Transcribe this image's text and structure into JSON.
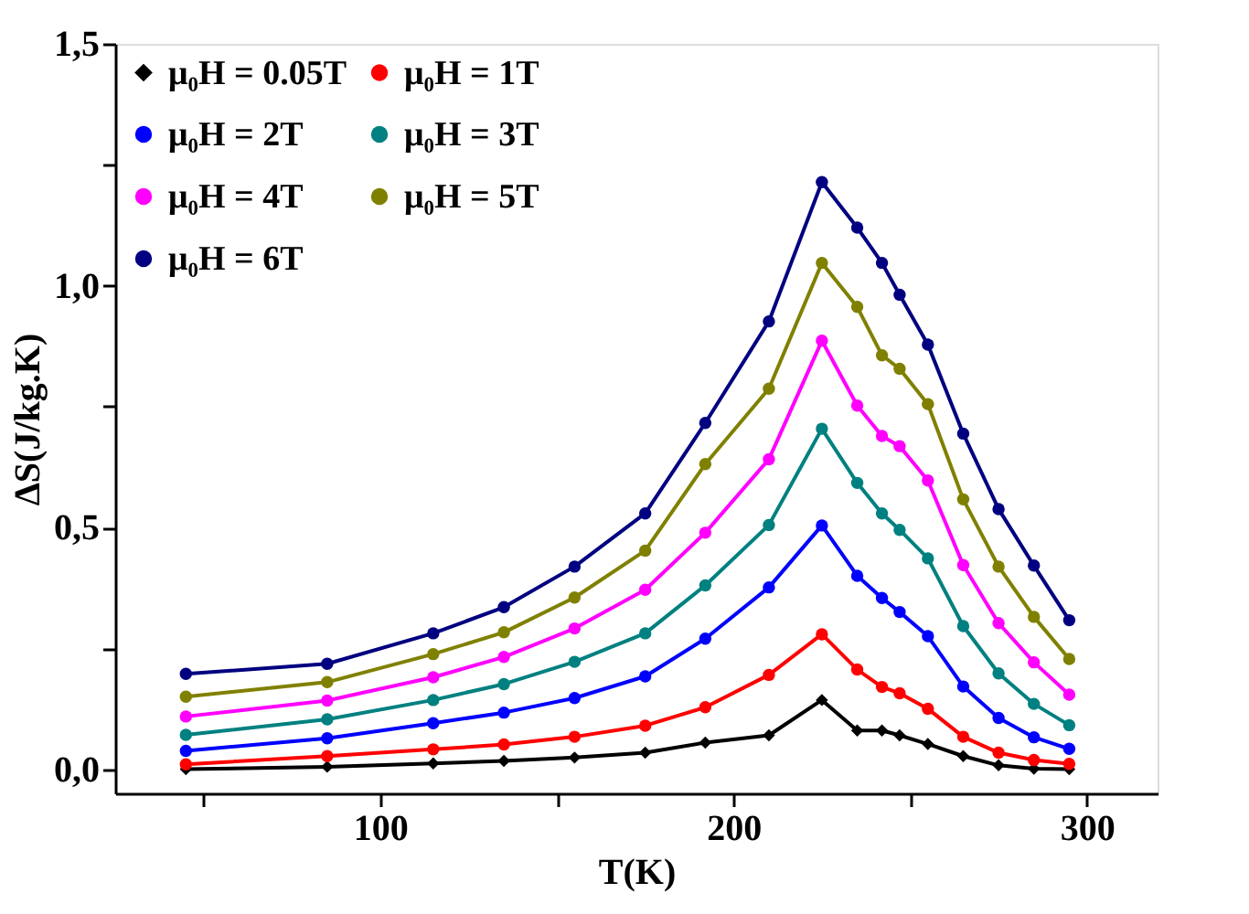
{
  "chart_data": {
    "type": "line",
    "xlabel": "T(K)",
    "ylabel": "ΔS(J/kg.K)",
    "x": [
      45,
      85,
      115,
      135,
      155,
      175,
      192,
      210,
      225,
      235,
      242,
      247,
      255,
      265,
      275,
      285,
      295
    ],
    "xlim": [
      25,
      320
    ],
    "xticks": [
      {
        "value": 50,
        "label": null
      },
      100,
      {
        "value": 150,
        "label": null
      },
      200,
      {
        "value": 250,
        "label": null
      },
      300
    ],
    "ylim": [
      -0.05,
      1.5
    ],
    "yticks": [
      {
        "value": 0,
        "label": "0,0"
      },
      {
        "value": 0.25,
        "label": null
      },
      {
        "value": 0.5,
        "label": "0,5"
      },
      {
        "value": 0.75,
        "label": null
      },
      {
        "value": 1.0,
        "label": "1,0"
      },
      {
        "value": 1.25,
        "label": null
      },
      {
        "value": 1.5,
        "label": "1,5"
      }
    ],
    "grid": false,
    "legend": "top left",
    "line_style": "solid",
    "series": [
      {
        "name": "μ₀H = 0.05T",
        "color": "#000000",
        "marker": "diamond",
        "values": [
          0.0,
          0.005,
          0.012,
          0.017,
          0.024,
          0.034,
          0.055,
          0.07,
          0.143,
          0.08,
          0.08,
          0.07,
          0.052,
          0.027,
          0.008,
          0.001,
          0.0
        ]
      },
      {
        "name": "μ₀H = 1T",
        "color": "#ff0000",
        "marker": "circle",
        "values": [
          0.01,
          0.027,
          0.041,
          0.051,
          0.067,
          0.09,
          0.128,
          0.195,
          0.279,
          0.206,
          0.17,
          0.157,
          0.125,
          0.067,
          0.034,
          0.019,
          0.011
        ]
      },
      {
        "name": "μ₀H = 2T",
        "color": "#0000ff",
        "marker": "circle",
        "values": [
          0.038,
          0.064,
          0.095,
          0.117,
          0.147,
          0.192,
          0.27,
          0.376,
          0.504,
          0.4,
          0.354,
          0.325,
          0.275,
          0.171,
          0.106,
          0.066,
          0.042
        ]
      },
      {
        "name": "μ₀H = 3T",
        "color": "#008080",
        "marker": "circle",
        "values": [
          0.071,
          0.103,
          0.143,
          0.176,
          0.222,
          0.281,
          0.38,
          0.505,
          0.704,
          0.592,
          0.529,
          0.495,
          0.436,
          0.296,
          0.198,
          0.135,
          0.091
        ]
      },
      {
        "name": "μ₀H = 4T",
        "color": "#ff00ff",
        "marker": "circle",
        "values": [
          0.109,
          0.142,
          0.19,
          0.232,
          0.291,
          0.371,
          0.489,
          0.641,
          0.886,
          0.752,
          0.689,
          0.668,
          0.597,
          0.422,
          0.302,
          0.221,
          0.154
        ]
      },
      {
        "name": "μ₀H = 5T",
        "color": "#808000",
        "marker": "circle",
        "values": [
          0.15,
          0.18,
          0.238,
          0.283,
          0.355,
          0.452,
          0.631,
          0.787,
          1.047,
          0.956,
          0.856,
          0.828,
          0.755,
          0.558,
          0.419,
          0.315,
          0.228
        ]
      },
      {
        "name": "μ₀H = 6T",
        "color": "#000080",
        "marker": "circle",
        "values": [
          0.197,
          0.218,
          0.281,
          0.335,
          0.419,
          0.529,
          0.716,
          0.926,
          1.214,
          1.12,
          1.047,
          0.981,
          0.878,
          0.694,
          0.538,
          0.421,
          0.308
        ]
      }
    ]
  }
}
